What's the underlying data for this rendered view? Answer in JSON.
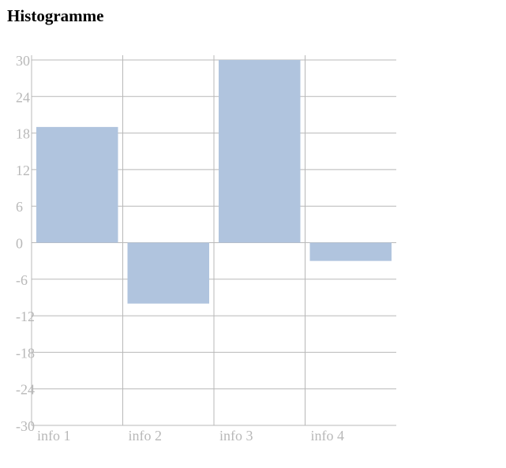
{
  "page": {
    "title": "Histogramme"
  },
  "colors": {
    "bar": "#b0c4de",
    "grid": "#b8b8b8",
    "label": "#b8b8b8"
  },
  "chart_data": {
    "type": "bar",
    "title": "Histogramme",
    "xlabel": "",
    "ylabel": "",
    "categories": [
      "info 1",
      "info 2",
      "info 3",
      "info 4"
    ],
    "values": [
      19,
      -10,
      30,
      -3
    ],
    "ylim": [
      -30,
      30
    ],
    "yticks": [
      30,
      24,
      18,
      12,
      6,
      0,
      -6,
      -12,
      -18,
      -24,
      -30
    ],
    "grid": true,
    "legend": "none"
  }
}
